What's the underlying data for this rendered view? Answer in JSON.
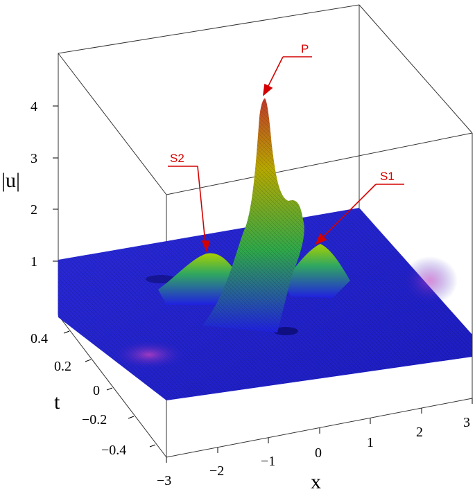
{
  "chart_data": {
    "type": "surface3d",
    "title": "",
    "xlabel": "x",
    "ylabel": "t",
    "zlabel": "|u|",
    "xlim": [
      -3,
      3
    ],
    "ylim": [
      -0.5,
      0.5
    ],
    "zlim": [
      0,
      5
    ],
    "xticks": [
      "−3",
      "−2",
      "−1",
      "0",
      "1",
      "2",
      "3"
    ],
    "yticks": [
      "−0.4",
      "−0.2",
      "0",
      "0.2",
      "0.4"
    ],
    "zticks": [
      "1",
      "2",
      "3",
      "4"
    ],
    "background_level": 1,
    "features": [
      {
        "label": "P",
        "x": -0.2,
        "t": 0.05,
        "u": 4.1
      },
      {
        "label": "S1",
        "x": 0.7,
        "t": 0.3,
        "u": 2.0
      },
      {
        "label": "S2",
        "x": -1.4,
        "t": 0.15,
        "u": 2.0
      }
    ],
    "colors": {
      "low": "#1a1aff",
      "mid": "#2ecc40",
      "high": "#e0c400",
      "peak": "#c0392b",
      "trough": "#c040c0",
      "annotation": "#d40000"
    }
  }
}
